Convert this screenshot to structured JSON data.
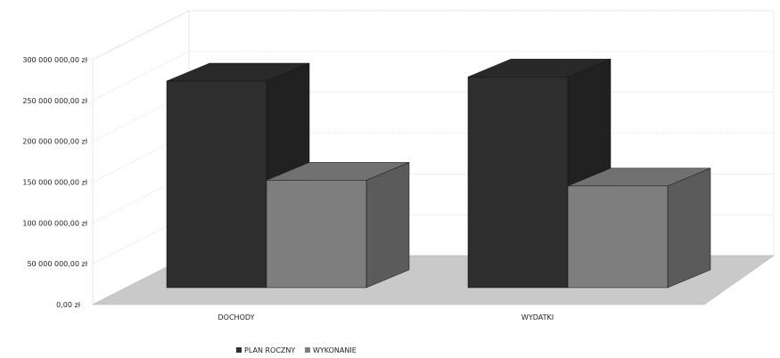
{
  "chart_data": {
    "type": "bar",
    "categories": [
      "DOCHODY",
      "WYDATKI"
    ],
    "series": [
      {
        "name": "PLAN ROCZNY",
        "values": [
          250000000,
          255000000
        ]
      },
      {
        "name": "WYKONANIE",
        "values": [
          130000000,
          123000000
        ]
      }
    ],
    "ylim": [
      0,
      300000000
    ],
    "yticks": [
      {
        "value": 0,
        "label": "0,00 zł"
      },
      {
        "value": 50000000,
        "label": "50 000 000,00 zł"
      },
      {
        "value": 100000000,
        "label": "100 000 000,00 zł"
      },
      {
        "value": 150000000,
        "label": "150 000 000,00 zł"
      },
      {
        "value": 200000000,
        "label": "200 000 000,00 zł"
      },
      {
        "value": 250000000,
        "label": "250 000 000,00 zł"
      },
      {
        "value": 300000000,
        "label": "300 000 000,00 zł"
      }
    ],
    "grid": true,
    "legend_position": "bottom",
    "colors": {
      "PLAN ROCZNY": "#2e2e2e",
      "WYKONANIE": "#7e7e7e",
      "floor": "#c9c9c9"
    },
    "style": "3d-clustered-column"
  }
}
